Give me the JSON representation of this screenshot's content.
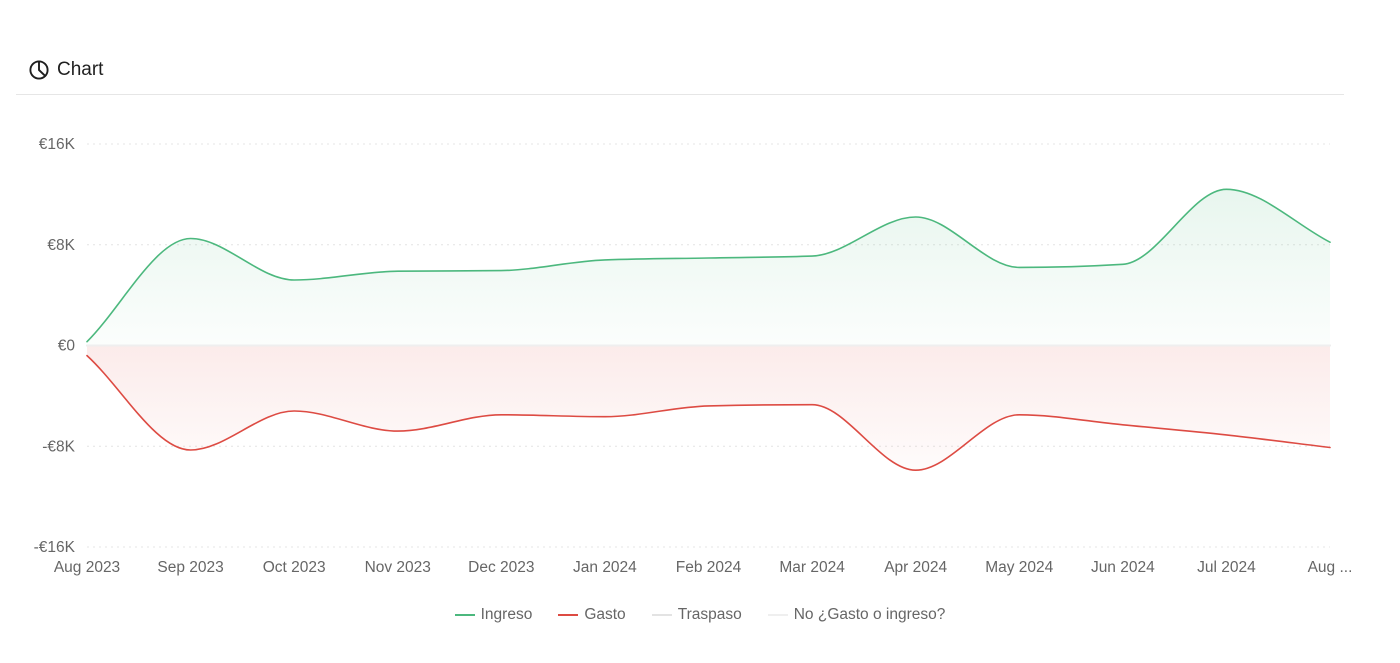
{
  "header": {
    "title": "Chart",
    "icon": "pie-chart-icon"
  },
  "chart_data": {
    "type": "area",
    "categories": [
      "Aug 2023",
      "Sep 2023",
      "Oct 2023",
      "Nov 2023",
      "Dec 2023",
      "Jan 2024",
      "Feb 2024",
      "Mar 2024",
      "Apr 2024",
      "May 2024",
      "Jun 2024",
      "Jul 2024",
      "Aug ..."
    ],
    "y_ticks": [
      "€16K",
      "€8K",
      "€0",
      "-€8K",
      "-€16K"
    ],
    "ylim": [
      -16000,
      16000
    ],
    "grid": true,
    "legend_position": "bottom",
    "series": [
      {
        "name": "Ingreso",
        "color": "#4cb87e",
        "values": [
          300,
          8500,
          5200,
          5900,
          5950,
          6800,
          6950,
          7100,
          10200,
          6200,
          6450,
          12400,
          8200
        ]
      },
      {
        "name": "Gasto",
        "color": "#dd4b43",
        "values": [
          -800,
          -8300,
          -5200,
          -6800,
          -5500,
          -5650,
          -4800,
          -4700,
          -9900,
          -5500,
          -6300,
          -7100,
          -8100
        ]
      },
      {
        "name": "Traspaso",
        "color": "#e3e3e3",
        "values": [
          0,
          0,
          0,
          0,
          0,
          0,
          0,
          0,
          0,
          0,
          0,
          0,
          0
        ]
      },
      {
        "name": "No ¿Gasto o ingreso?",
        "color": "#efefef",
        "values": [
          0,
          0,
          0,
          0,
          0,
          0,
          0,
          0,
          0,
          0,
          0,
          0,
          0
        ]
      }
    ]
  }
}
